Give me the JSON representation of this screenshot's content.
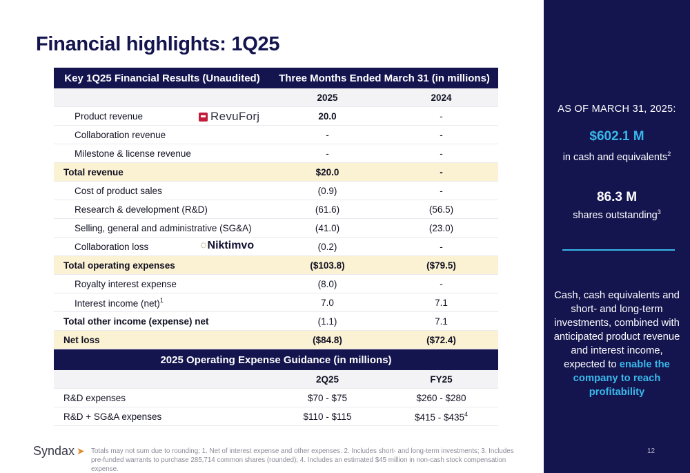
{
  "title": "Financial highlights: 1Q25",
  "results_table": {
    "header_left": "Key 1Q25 Financial Results (Unaudited)",
    "header_right": "Three Months Ended March 31 (in millions)",
    "year1": "2025",
    "year2": "2024",
    "rows": [
      {
        "label": "Product revenue",
        "v2025": "20.0",
        "v2024": "-"
      },
      {
        "label": "Collaboration revenue",
        "v2025": "-",
        "v2024": "-"
      },
      {
        "label": "Milestone & license revenue",
        "v2025": "-",
        "v2024": "-"
      },
      {
        "label": "Total revenue",
        "v2025": "$20.0",
        "v2024": "-"
      },
      {
        "label": "Cost of product sales",
        "v2025": "(0.9)",
        "v2024": "-"
      },
      {
        "label": "Research & development (R&D)",
        "v2025": "(61.6)",
        "v2024": "(56.5)"
      },
      {
        "label": "Selling, general and administrative (SG&A)",
        "v2025": "(41.0)",
        "v2024": "(23.0)"
      },
      {
        "label": "Collaboration loss",
        "v2025": "(0.2)",
        "v2024": "-"
      },
      {
        "label": "Total operating expenses",
        "v2025": "($103.8)",
        "v2024": "($79.5)"
      },
      {
        "label": "Royalty interest expense",
        "v2025": "(8.0)",
        "v2024": "-"
      },
      {
        "label": "Interest income (net)",
        "sup": "1",
        "v2025": "7.0",
        "v2024": "7.1"
      },
      {
        "label": "Total other income (expense) net",
        "v2025": "(1.1)",
        "v2024": "7.1"
      },
      {
        "label": "Net loss",
        "v2025": "($84.8)",
        "v2024": "($72.4)"
      }
    ]
  },
  "logos": {
    "revuforj": "RevuForj",
    "niktimvo": "Niktimvo"
  },
  "guidance_table": {
    "header": "2025 Operating Expense Guidance (in millions)",
    "col1": "2Q25",
    "col2": "FY25",
    "rows": [
      {
        "label": "R&D expenses",
        "q": "$70 - $75",
        "fy": "$260 - $280"
      },
      {
        "label": "R&D + SG&A expenses",
        "q": "$110 - $115",
        "fy": "$415 - $435",
        "fy_sup": "4"
      }
    ]
  },
  "sidebar": {
    "as_of": "AS OF MARCH 31, 2025:",
    "cash_value": "$602.1 M",
    "cash_label": "in cash and equivalents",
    "cash_sup": "2",
    "shares_value": "86.3 M",
    "shares_label": "shares outstanding",
    "shares_sup": "3",
    "para_text": "Cash, cash equivalents and short- and long-term investments, combined with anticipated product revenue and interest income, expected to",
    "para_highlight": "enable the company to reach profitability",
    "page_number": "12"
  },
  "footer": {
    "company": "Syndax",
    "footnote": "Totals may not sum due to rounding; 1. Net of interest expense and other expenses. 2. Includes short- and long-term investments; 3. Includes pre-funded warrants to purchase 285,714 common shares (rounded); 4. Includes an estimated $45 million in non-cash stock compensation expense."
  },
  "colors": {
    "navy": "#14144f",
    "accent_blue": "#39b9ea",
    "total_row": "#fbf1d3"
  }
}
